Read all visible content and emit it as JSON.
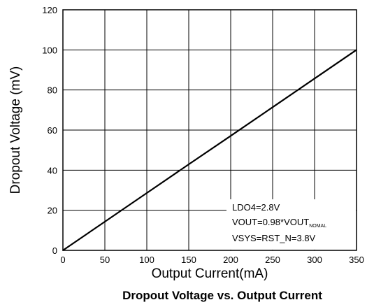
{
  "chart_data": {
    "type": "line",
    "title": "Dropout Voltage vs. Output Current",
    "xlabel": "Output Current(mA)",
    "ylabel": "Dropout Voltage (mV)",
    "xlim": [
      0,
      350
    ],
    "ylim": [
      0,
      120
    ],
    "xticks": [
      "0",
      "50",
      "100",
      "150",
      "200",
      "250",
      "300",
      "350"
    ],
    "yticks": [
      "0",
      "20",
      "40",
      "60",
      "80",
      "100",
      "120"
    ],
    "grid": true,
    "series": [
      {
        "x": [
          0,
          50,
          100,
          150,
          200,
          250,
          300,
          350
        ],
        "y": [
          0,
          14.3,
          28.6,
          42.9,
          57.1,
          71.4,
          85.7,
          100
        ],
        "color": "#000000"
      }
    ],
    "annotation": {
      "line1": "LDO4=2.8V",
      "line2_main": "VOUT=0.98*VOUT",
      "line2_sub": "NOMAL",
      "line3": "VSYS=RST_N=3.8V"
    }
  }
}
